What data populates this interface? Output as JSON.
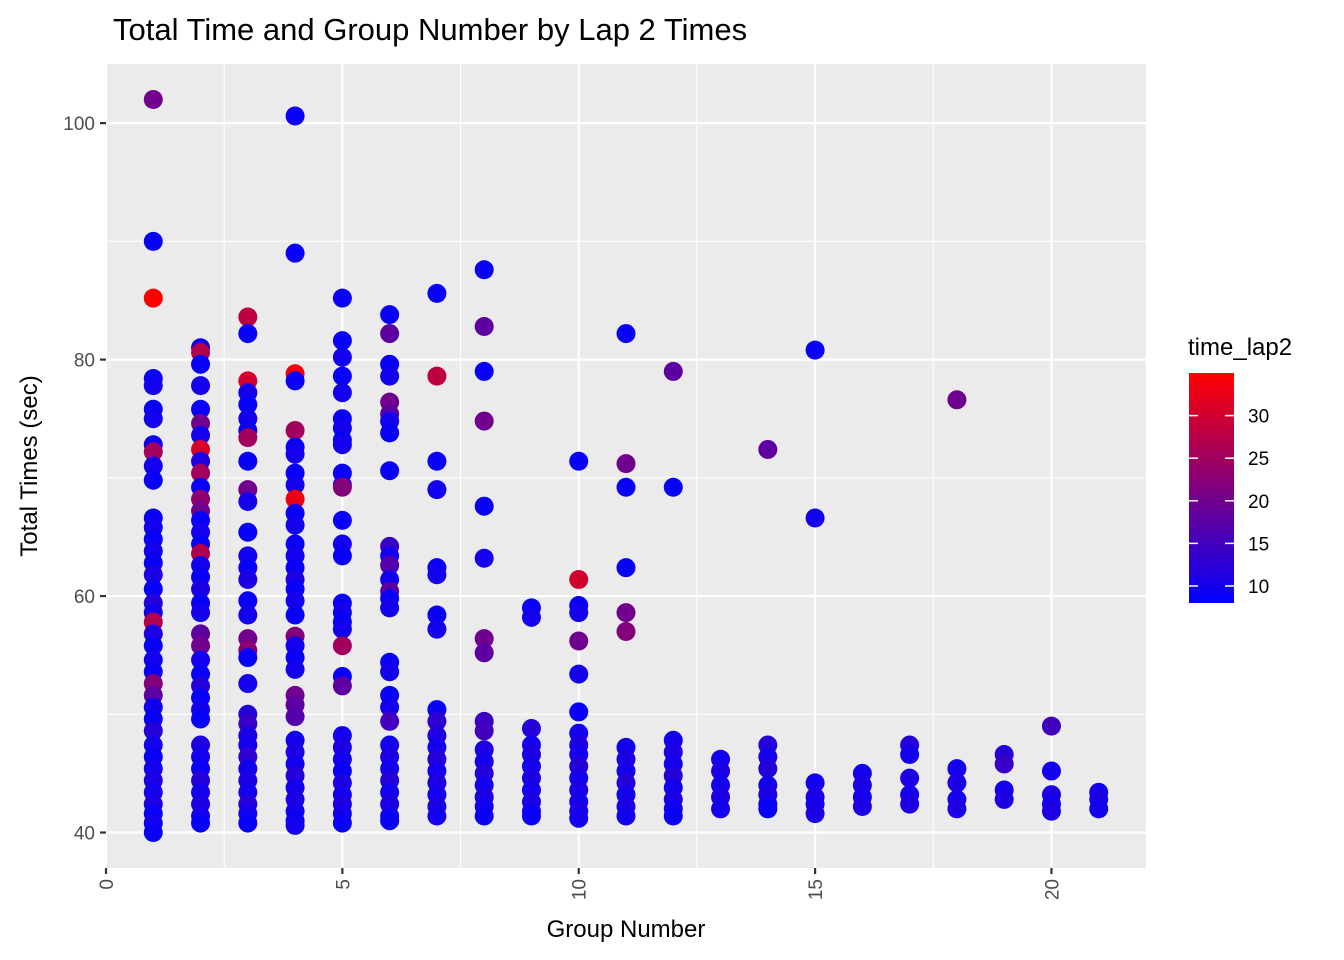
{
  "chart_data": {
    "type": "scatter",
    "title": "Total Time and Group Number by Lap 2 Times",
    "xlabel": "Group Number",
    "ylabel": "Total Times (sec)",
    "xlim": [
      0,
      22
    ],
    "ylim": [
      37,
      105
    ],
    "x_ticks": [
      0,
      5,
      10,
      15,
      20
    ],
    "x_tick_labels": [
      "0",
      "5",
      "10",
      "15",
      "20"
    ],
    "y_ticks": [
      40,
      60,
      80,
      100
    ],
    "y_tick_labels": [
      "40",
      "60",
      "80",
      "100"
    ],
    "grid": true,
    "legend": {
      "title": "time_lap2",
      "position": "right",
      "type": "colorbar",
      "range": [
        8,
        35
      ],
      "breaks": [
        10,
        15,
        20,
        25,
        30
      ],
      "break_labels": [
        "10",
        "15",
        "20",
        "25",
        "30"
      ],
      "low_color": "#0000ff",
      "high_color": "#ff0000"
    },
    "colors": {
      "panel": "#ebebeb",
      "grid": "#ffffff"
    },
    "points": [
      [
        1,
        102,
        20
      ],
      [
        1,
        90,
        9
      ],
      [
        1,
        85.2,
        35
      ],
      [
        1,
        78.4,
        9
      ],
      [
        1,
        77.8,
        10
      ],
      [
        1,
        75.8,
        9
      ],
      [
        1,
        75,
        10
      ],
      [
        1,
        72.8,
        9
      ],
      [
        1,
        72.2,
        25
      ],
      [
        1,
        71,
        10
      ],
      [
        1,
        69.8,
        9
      ],
      [
        1,
        66.6,
        9
      ],
      [
        1,
        65.8,
        10
      ],
      [
        1,
        64.8,
        9
      ],
      [
        1,
        63.8,
        10
      ],
      [
        1,
        62.8,
        9
      ],
      [
        1,
        61.8,
        11
      ],
      [
        1,
        60.6,
        9
      ],
      [
        1,
        59.4,
        12
      ],
      [
        1,
        58.6,
        10
      ],
      [
        1,
        57.8,
        27
      ],
      [
        1,
        56.8,
        11
      ],
      [
        1,
        55.8,
        9
      ],
      [
        1,
        54.6,
        10
      ],
      [
        1,
        53.6,
        9
      ],
      [
        1,
        52.6,
        22
      ],
      [
        1,
        51.6,
        18
      ],
      [
        1,
        50.6,
        10
      ],
      [
        1,
        49.6,
        9
      ],
      [
        1,
        48.6,
        12
      ],
      [
        1,
        47.4,
        10
      ],
      [
        1,
        46.4,
        9
      ],
      [
        1,
        45.4,
        10
      ],
      [
        1,
        44.4,
        11
      ],
      [
        1,
        43.4,
        10
      ],
      [
        1,
        42.4,
        11
      ],
      [
        1,
        41.6,
        9
      ],
      [
        1,
        40.8,
        10
      ],
      [
        1,
        40,
        9
      ],
      [
        2,
        81,
        10
      ],
      [
        2,
        80.6,
        27
      ],
      [
        2,
        79.6,
        9
      ],
      [
        2,
        77.8,
        10
      ],
      [
        2,
        75.8,
        9
      ],
      [
        2,
        74.6,
        20
      ],
      [
        2,
        73.6,
        10
      ],
      [
        2,
        72.4,
        31
      ],
      [
        2,
        71.4,
        11
      ],
      [
        2,
        70.4,
        25
      ],
      [
        2,
        69.2,
        9
      ],
      [
        2,
        68.2,
        23
      ],
      [
        2,
        67.2,
        20
      ],
      [
        2,
        66.4,
        9
      ],
      [
        2,
        65.4,
        10
      ],
      [
        2,
        64.4,
        9
      ],
      [
        2,
        63.6,
        27
      ],
      [
        2,
        62.6,
        10
      ],
      [
        2,
        61.6,
        9
      ],
      [
        2,
        60.6,
        11
      ],
      [
        2,
        59.4,
        9
      ],
      [
        2,
        58.6,
        10
      ],
      [
        2,
        56.8,
        18
      ],
      [
        2,
        55.8,
        20
      ],
      [
        2,
        54.6,
        10
      ],
      [
        2,
        53.4,
        9
      ],
      [
        2,
        52.4,
        12
      ],
      [
        2,
        51.4,
        9
      ],
      [
        2,
        50.4,
        10
      ],
      [
        2,
        49.6,
        9
      ],
      [
        2,
        47.4,
        11
      ],
      [
        2,
        46.4,
        10
      ],
      [
        2,
        45.4,
        9
      ],
      [
        2,
        44.4,
        12
      ],
      [
        2,
        43.4,
        10
      ],
      [
        2,
        42.4,
        11
      ],
      [
        2,
        41.4,
        10
      ],
      [
        2,
        40.8,
        9
      ],
      [
        3,
        83.6,
        28
      ],
      [
        3,
        82.2,
        9
      ],
      [
        3,
        78.2,
        30
      ],
      [
        3,
        77.2,
        10
      ],
      [
        3,
        76.2,
        9
      ],
      [
        3,
        75,
        10
      ],
      [
        3,
        74,
        9
      ],
      [
        3,
        73.4,
        25
      ],
      [
        3,
        71.4,
        9
      ],
      [
        3,
        69,
        20
      ],
      [
        3,
        68,
        10
      ],
      [
        3,
        65.4,
        9
      ],
      [
        3,
        63.4,
        10
      ],
      [
        3,
        62.4,
        9
      ],
      [
        3,
        61.4,
        11
      ],
      [
        3,
        59.6,
        9
      ],
      [
        3,
        58.4,
        10
      ],
      [
        3,
        56.4,
        20
      ],
      [
        3,
        55.4,
        23
      ],
      [
        3,
        54.8,
        9
      ],
      [
        3,
        52.6,
        10
      ],
      [
        3,
        50,
        12
      ],
      [
        3,
        49.2,
        14
      ],
      [
        3,
        48.2,
        11
      ],
      [
        3,
        47.4,
        10
      ],
      [
        3,
        46.4,
        13
      ],
      [
        3,
        45.4,
        10
      ],
      [
        3,
        44.4,
        11
      ],
      [
        3,
        43.4,
        10
      ],
      [
        3,
        42.4,
        12
      ],
      [
        3,
        41.6,
        10
      ],
      [
        3,
        40.8,
        9
      ],
      [
        4,
        100.6,
        9
      ],
      [
        4,
        89,
        9
      ],
      [
        4,
        78.8,
        34
      ],
      [
        4,
        78.2,
        9
      ],
      [
        4,
        74,
        25
      ],
      [
        4,
        72.6,
        9
      ],
      [
        4,
        72,
        10
      ],
      [
        4,
        70.4,
        9
      ],
      [
        4,
        69.4,
        10
      ],
      [
        4,
        68.2,
        33
      ],
      [
        4,
        67,
        9
      ],
      [
        4,
        66,
        10
      ],
      [
        4,
        64.4,
        9
      ],
      [
        4,
        63.4,
        10
      ],
      [
        4,
        62.4,
        9
      ],
      [
        4,
        61.4,
        11
      ],
      [
        4,
        60.6,
        9
      ],
      [
        4,
        59.6,
        10
      ],
      [
        4,
        58.4,
        9
      ],
      [
        4,
        56.6,
        22
      ],
      [
        4,
        55.8,
        10
      ],
      [
        4,
        54.8,
        9
      ],
      [
        4,
        53.8,
        10
      ],
      [
        4,
        51.6,
        20
      ],
      [
        4,
        50.8,
        18
      ],
      [
        4,
        49.8,
        17
      ],
      [
        4,
        47.8,
        10
      ],
      [
        4,
        46.8,
        11
      ],
      [
        4,
        45.8,
        10
      ],
      [
        4,
        44.8,
        12
      ],
      [
        4,
        43.8,
        10
      ],
      [
        4,
        42.8,
        11
      ],
      [
        4,
        41.8,
        10
      ],
      [
        4,
        41,
        9
      ],
      [
        4,
        40.6,
        10
      ],
      [
        5,
        85.2,
        9
      ],
      [
        5,
        81.6,
        9
      ],
      [
        5,
        80.2,
        10
      ],
      [
        5,
        78.6,
        9
      ],
      [
        5,
        77.2,
        10
      ],
      [
        5,
        75,
        9
      ],
      [
        5,
        74.2,
        10
      ],
      [
        5,
        73.2,
        9
      ],
      [
        5,
        72.8,
        10
      ],
      [
        5,
        70.4,
        9
      ],
      [
        5,
        69.4,
        10
      ],
      [
        5,
        69.2,
        22
      ],
      [
        5,
        66.4,
        9
      ],
      [
        5,
        64.4,
        10
      ],
      [
        5,
        63.4,
        9
      ],
      [
        5,
        59.4,
        9
      ],
      [
        5,
        58.6,
        10
      ],
      [
        5,
        57.8,
        9
      ],
      [
        5,
        57.2,
        10
      ],
      [
        5,
        55.8,
        25
      ],
      [
        5,
        53.2,
        9
      ],
      [
        5,
        52.4,
        18
      ],
      [
        5,
        48.2,
        10
      ],
      [
        5,
        47.2,
        11
      ],
      [
        5,
        46.2,
        10
      ],
      [
        5,
        45.2,
        9
      ],
      [
        5,
        44.2,
        11
      ],
      [
        5,
        43.2,
        10
      ],
      [
        5,
        42.4,
        11
      ],
      [
        5,
        41.6,
        10
      ],
      [
        5,
        40.8,
        9
      ],
      [
        6,
        83.8,
        9
      ],
      [
        6,
        82.2,
        18
      ],
      [
        6,
        79.6,
        9
      ],
      [
        6,
        78.6,
        10
      ],
      [
        6,
        76.4,
        20
      ],
      [
        6,
        75.4,
        18
      ],
      [
        6,
        74.8,
        10
      ],
      [
        6,
        73.8,
        9
      ],
      [
        6,
        70.6,
        9
      ],
      [
        6,
        64.2,
        14
      ],
      [
        6,
        63.4,
        10
      ],
      [
        6,
        62.6,
        17
      ],
      [
        6,
        61.4,
        10
      ],
      [
        6,
        60.4,
        18
      ],
      [
        6,
        59.8,
        9
      ],
      [
        6,
        59,
        10
      ],
      [
        6,
        54.4,
        9
      ],
      [
        6,
        53.6,
        10
      ],
      [
        6,
        51.6,
        9
      ],
      [
        6,
        50.6,
        10
      ],
      [
        6,
        49.4,
        15
      ],
      [
        6,
        47.4,
        10
      ],
      [
        6,
        46.4,
        11
      ],
      [
        6,
        45.4,
        10
      ],
      [
        6,
        44.4,
        12
      ],
      [
        6,
        43.4,
        10
      ],
      [
        6,
        42.4,
        11
      ],
      [
        6,
        41.4,
        10
      ],
      [
        6,
        41,
        9
      ],
      [
        7,
        85.6,
        9
      ],
      [
        7,
        78.6,
        28
      ],
      [
        7,
        71.4,
        9
      ],
      [
        7,
        69,
        10
      ],
      [
        7,
        62.4,
        9
      ],
      [
        7,
        61.8,
        10
      ],
      [
        7,
        58.4,
        9
      ],
      [
        7,
        57.2,
        10
      ],
      [
        7,
        50.4,
        9
      ],
      [
        7,
        49.4,
        13
      ],
      [
        7,
        48.2,
        11
      ],
      [
        7,
        47.2,
        10
      ],
      [
        7,
        46.2,
        12
      ],
      [
        7,
        45.2,
        10
      ],
      [
        7,
        44.2,
        11
      ],
      [
        7,
        43.2,
        10
      ],
      [
        7,
        42.2,
        11
      ],
      [
        7,
        41.4,
        10
      ],
      [
        8,
        87.6,
        9
      ],
      [
        8,
        82.8,
        18
      ],
      [
        8,
        79,
        9
      ],
      [
        8,
        74.8,
        20
      ],
      [
        8,
        67.6,
        9
      ],
      [
        8,
        63.2,
        10
      ],
      [
        8,
        56.4,
        20
      ],
      [
        8,
        55.2,
        18
      ],
      [
        8,
        49.4,
        14
      ],
      [
        8,
        48.6,
        15
      ],
      [
        8,
        47,
        11
      ],
      [
        8,
        46,
        10
      ],
      [
        8,
        45,
        12
      ],
      [
        8,
        44,
        10
      ],
      [
        8,
        43,
        11
      ],
      [
        8,
        42.2,
        10
      ],
      [
        8,
        41.4,
        9
      ],
      [
        9,
        59,
        9
      ],
      [
        9,
        58.2,
        10
      ],
      [
        9,
        48.8,
        12
      ],
      [
        9,
        47.4,
        10
      ],
      [
        9,
        46.6,
        11
      ],
      [
        9,
        45.6,
        10
      ],
      [
        9,
        44.6,
        11
      ],
      [
        9,
        43.6,
        10
      ],
      [
        9,
        42.6,
        11
      ],
      [
        9,
        41.8,
        10
      ],
      [
        9,
        41.4,
        9
      ],
      [
        10,
        71.4,
        9
      ],
      [
        10,
        61.4,
        30
      ],
      [
        10,
        59.2,
        9
      ],
      [
        10,
        58.6,
        10
      ],
      [
        10,
        56.2,
        20
      ],
      [
        10,
        53.4,
        10
      ],
      [
        10,
        50.2,
        9
      ],
      [
        10,
        48.4,
        10
      ],
      [
        10,
        47.4,
        11
      ],
      [
        10,
        46.6,
        10
      ],
      [
        10,
        45.6,
        12
      ],
      [
        10,
        44.6,
        10
      ],
      [
        10,
        43.6,
        11
      ],
      [
        10,
        42.6,
        10
      ],
      [
        10,
        41.8,
        11
      ],
      [
        10,
        41.2,
        10
      ],
      [
        11,
        82.2,
        9
      ],
      [
        11,
        71.2,
        20
      ],
      [
        11,
        69.2,
        9
      ],
      [
        11,
        62.4,
        9
      ],
      [
        11,
        58.6,
        20
      ],
      [
        11,
        57,
        22
      ],
      [
        11,
        47.2,
        10
      ],
      [
        11,
        46.2,
        11
      ],
      [
        11,
        45.2,
        10
      ],
      [
        11,
        44.2,
        12
      ],
      [
        11,
        43.2,
        10
      ],
      [
        11,
        42.2,
        11
      ],
      [
        11,
        41.4,
        10
      ],
      [
        12,
        79,
        18
      ],
      [
        12,
        69.2,
        9
      ],
      [
        12,
        47.8,
        10
      ],
      [
        12,
        46.8,
        11
      ],
      [
        12,
        45.8,
        10
      ],
      [
        12,
        44.8,
        12
      ],
      [
        12,
        43.8,
        10
      ],
      [
        12,
        42.8,
        11
      ],
      [
        12,
        42,
        10
      ],
      [
        12,
        41.4,
        9
      ],
      [
        13,
        46.2,
        10
      ],
      [
        13,
        45.2,
        11
      ],
      [
        13,
        44,
        10
      ],
      [
        13,
        43,
        11
      ],
      [
        13,
        42,
        10
      ],
      [
        14,
        72.4,
        18
      ],
      [
        14,
        47.4,
        12
      ],
      [
        14,
        46.4,
        10
      ],
      [
        14,
        45.4,
        12
      ],
      [
        14,
        44,
        10
      ],
      [
        14,
        43.2,
        11
      ],
      [
        14,
        42.4,
        10
      ],
      [
        14,
        42,
        9
      ],
      [
        15,
        80.8,
        9
      ],
      [
        15,
        66.6,
        10
      ],
      [
        15,
        44.2,
        10
      ],
      [
        15,
        43,
        11
      ],
      [
        15,
        42.4,
        10
      ],
      [
        15,
        41.6,
        11
      ],
      [
        16,
        45,
        10
      ],
      [
        16,
        44,
        11
      ],
      [
        16,
        43,
        10
      ],
      [
        16,
        42.2,
        11
      ],
      [
        17,
        47.4,
        12
      ],
      [
        17,
        46.6,
        10
      ],
      [
        17,
        44.6,
        11
      ],
      [
        17,
        43.2,
        10
      ],
      [
        17,
        42.4,
        11
      ],
      [
        18,
        76.6,
        20
      ],
      [
        18,
        45.4,
        10
      ],
      [
        18,
        44.2,
        11
      ],
      [
        18,
        42.8,
        10
      ],
      [
        18,
        42,
        11
      ],
      [
        19,
        46.6,
        12
      ],
      [
        19,
        45.8,
        14
      ],
      [
        19,
        43.6,
        10
      ],
      [
        19,
        42.8,
        11
      ],
      [
        20,
        49,
        15
      ],
      [
        20,
        45.2,
        10
      ],
      [
        20,
        43.2,
        11
      ],
      [
        20,
        42.4,
        10
      ],
      [
        20,
        41.8,
        11
      ],
      [
        21,
        43.4,
        10
      ],
      [
        21,
        42.8,
        11
      ],
      [
        21,
        42,
        10
      ]
    ]
  }
}
